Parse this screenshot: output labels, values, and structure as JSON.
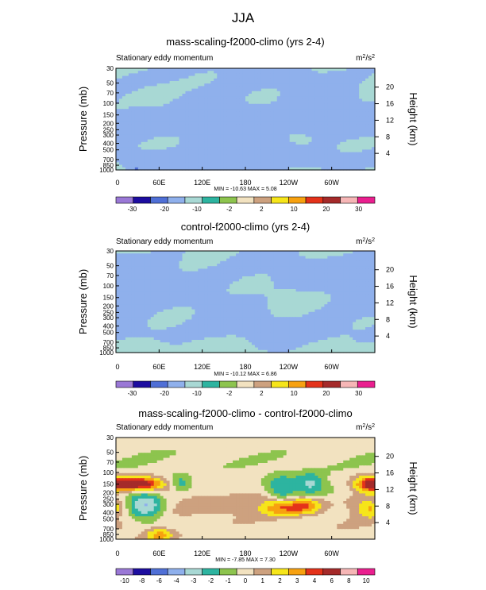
{
  "figure_title": "JJA",
  "colors": {
    "standard_palette": [
      "#9a78d6",
      "#1d0da0",
      "#4f6fd6",
      "#8fb0ec",
      "#a8d8d4",
      "#2db4a0",
      "#8dc44e",
      "#f2e2c0",
      "#cda17f",
      "#f6e51a",
      "#f7a110",
      "#e4321a",
      "#a52a2a",
      "#f6b6b6",
      "#ea1f8f"
    ],
    "diff_palette": [
      "#9a78d6",
      "#1d0da0",
      "#4f6fd6",
      "#8fb0ec",
      "#a8d8d4",
      "#2db4a0",
      "#8dc44e",
      "#f2e2c0",
      "#cda17f",
      "#f6e51a",
      "#f7a110",
      "#e4321a",
      "#a52a2a",
      "#f6b6b6",
      "#ea1f8f"
    ]
  },
  "chart_data": [
    {
      "type": "heatmap",
      "title": "mass-scaling-f2000-climo (yrs 2-4)",
      "left_label": "Stationary eddy momentum",
      "units_base": "m",
      "units_exp1": "2",
      "units_mid": "/s",
      "units_exp2": "2",
      "ylabel": "Pressure (mb)",
      "ylabel_right": "Height (km)",
      "pressure_ticks": [
        "30",
        "50",
        "70",
        "100",
        "150",
        "200",
        "250",
        "300",
        "400",
        "500",
        "700",
        "850",
        "1000"
      ],
      "pressure_values": [
        30,
        50,
        70,
        100,
        150,
        200,
        250,
        300,
        400,
        500,
        700,
        850,
        1000
      ],
      "height_ticks": [
        "20",
        "16",
        "12",
        "8",
        "4"
      ],
      "height_values": [
        20,
        16,
        12,
        8,
        4
      ],
      "xticks": [
        "0",
        "60E",
        "120E",
        "180",
        "120W",
        "60W"
      ],
      "xtick_lon": [
        0,
        60,
        120,
        180,
        240,
        300
      ],
      "stats": "MIN = -10.63   MAX =   5.08",
      "contour_levels": [
        "-30",
        "-20",
        "-10",
        "-2",
        "2",
        "10",
        "20",
        "30"
      ],
      "palette": "standard",
      "features": [
        {
          "lon": 0,
          "p": 220,
          "val": -3.0,
          "w": 360,
          "h": 0.12
        },
        {
          "lon": 180,
          "p": 30,
          "val": -3.0,
          "w": 180,
          "h": 0.25
        },
        {
          "lon": 100,
          "p": 120,
          "val": -2.6,
          "w": 30,
          "h": 0.18
        },
        {
          "lon": 170,
          "p": 150,
          "val": -2.6,
          "w": 30,
          "h": 0.15
        },
        {
          "lon": 300,
          "p": 110,
          "val": -2.8,
          "w": 40,
          "h": 0.18
        },
        {
          "lon": 30,
          "p": 160,
          "val": -2.4,
          "w": 20,
          "h": 0.12
        },
        {
          "lon": 210,
          "p": 400,
          "val": -3.0,
          "w": 60,
          "h": 0.15
        },
        {
          "lon": 0,
          "p": 650,
          "val": -2.6,
          "w": 360,
          "h": 0.1
        },
        {
          "lon": 60,
          "p": 80,
          "val": 2.0,
          "w": 40,
          "h": 0.1
        },
        {
          "lon": 255,
          "p": 370,
          "val": 3.5,
          "w": 25,
          "h": 0.08
        },
        {
          "lon": 30,
          "p": 1000,
          "val": -8.0,
          "w": 8,
          "h": 0.05
        },
        {
          "lon": 140,
          "p": 900,
          "val": -2.6,
          "w": 50,
          "h": 0.06
        }
      ]
    },
    {
      "type": "heatmap",
      "title": "control-f2000-climo (yrs 2-4)",
      "left_label": "Stationary eddy momentum",
      "units_base": "m",
      "units_exp1": "2",
      "units_mid": "/s",
      "units_exp2": "2",
      "ylabel": "Pressure (mb)",
      "ylabel_right": "Height (km)",
      "pressure_ticks": [
        "30",
        "50",
        "70",
        "100",
        "150",
        "200",
        "250",
        "300",
        "400",
        "500",
        "700",
        "850",
        "1000"
      ],
      "pressure_values": [
        30,
        50,
        70,
        100,
        150,
        200,
        250,
        300,
        400,
        500,
        700,
        850,
        1000
      ],
      "height_ticks": [
        "20",
        "16",
        "12",
        "8",
        "4"
      ],
      "height_values": [
        20,
        16,
        12,
        8,
        4
      ],
      "xticks": [
        "0",
        "60E",
        "120E",
        "180",
        "120W",
        "60W"
      ],
      "xtick_lon": [
        0,
        60,
        120,
        180,
        240,
        300
      ],
      "stats": "MIN = -10.12   MAX =   6.86",
      "contour_levels": [
        "-30",
        "-20",
        "-10",
        "-2",
        "2",
        "10",
        "20",
        "30"
      ],
      "palette": "standard",
      "features": [
        {
          "lon": 0,
          "p": 60,
          "val": -3.0,
          "w": 360,
          "h": 0.22
        },
        {
          "lon": 20,
          "p": 150,
          "val": -8.0,
          "w": 22,
          "h": 0.1
        },
        {
          "lon": 180,
          "p": 250,
          "val": -2.6,
          "w": 80,
          "h": 0.15
        },
        {
          "lon": 300,
          "p": 160,
          "val": -2.8,
          "w": 40,
          "h": 0.18
        },
        {
          "lon": 0,
          "p": 500,
          "val": -2.6,
          "w": 360,
          "h": 0.1
        },
        {
          "lon": 240,
          "p": 180,
          "val": 3.0,
          "w": 25,
          "h": 0.1
        },
        {
          "lon": 285,
          "p": 150,
          "val": 2.5,
          "w": 30,
          "h": 0.08
        },
        {
          "lon": 40,
          "p": 850,
          "val": 3.0,
          "w": 20,
          "h": 0.05
        },
        {
          "lon": 230,
          "p": 850,
          "val": -2.4,
          "w": 20,
          "h": 0.06
        }
      ]
    },
    {
      "type": "heatmap",
      "title": "mass-scaling-f2000-climo - control-f2000-climo",
      "left_label": "Stationary eddy momentum",
      "units_base": "m",
      "units_exp1": "2",
      "units_mid": "/s",
      "units_exp2": "2",
      "ylabel": "Pressure (mb)",
      "ylabel_right": "Height (km)",
      "pressure_ticks": [
        "30",
        "50",
        "70",
        "100",
        "150",
        "200",
        "250",
        "300",
        "400",
        "500",
        "700",
        "850",
        "1000"
      ],
      "pressure_values": [
        30,
        50,
        70,
        100,
        150,
        200,
        250,
        300,
        400,
        500,
        700,
        850,
        1000
      ],
      "height_ticks": [
        "20",
        "16",
        "12",
        "8",
        "4"
      ],
      "height_values": [
        20,
        16,
        12,
        8,
        4
      ],
      "xticks": [
        "0",
        "60E",
        "120E",
        "180",
        "120W",
        "60W"
      ],
      "xtick_lon": [
        0,
        60,
        120,
        180,
        240,
        300
      ],
      "stats": "MIN =  -7.85   MAX =   7.30",
      "contour_levels": [
        "-10",
        "-8",
        "-6",
        "-4",
        "-3",
        "-2",
        "-1",
        "0",
        "1",
        "2",
        "3",
        "4",
        "6",
        "8",
        "10"
      ],
      "palette": "diff",
      "features": [
        {
          "lon": 0,
          "p": 60,
          "val": -0.8,
          "w": 360,
          "h": 0.25
        },
        {
          "lon": 30,
          "p": 150,
          "val": 7.0,
          "w": 25,
          "h": 0.05
        },
        {
          "lon": 40,
          "p": 300,
          "val": -4.0,
          "w": 20,
          "h": 0.12
        },
        {
          "lon": 90,
          "p": 150,
          "val": -2.5,
          "w": 12,
          "h": 0.06
        },
        {
          "lon": 230,
          "p": 180,
          "val": -3.0,
          "w": 15,
          "h": 0.1
        },
        {
          "lon": 230,
          "p": 330,
          "val": 3.5,
          "w": 20,
          "h": 0.06
        },
        {
          "lon": 270,
          "p": 150,
          "val": -3.0,
          "w": 15,
          "h": 0.08
        },
        {
          "lon": 265,
          "p": 310,
          "val": 3.0,
          "w": 15,
          "h": 0.06
        },
        {
          "lon": 350,
          "p": 150,
          "val": 3.5,
          "w": 15,
          "h": 0.06
        },
        {
          "lon": 355,
          "p": 350,
          "val": 2.5,
          "w": 15,
          "h": 0.06
        },
        {
          "lon": 130,
          "p": 300,
          "val": 1.0,
          "w": 40,
          "h": 0.1
        },
        {
          "lon": 60,
          "p": 850,
          "val": 3.0,
          "w": 15,
          "h": 0.05
        },
        {
          "lon": 180,
          "p": 700,
          "val": -0.6,
          "w": 120,
          "h": 0.1
        }
      ]
    }
  ]
}
